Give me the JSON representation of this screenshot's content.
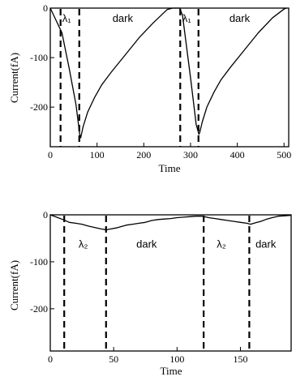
{
  "chart_data": [
    {
      "type": "line",
      "xlabel": "Time",
      "ylabel": "Current(fA)",
      "xlim": [
        0,
        510
      ],
      "ylim": [
        -280,
        0
      ],
      "xticks": [
        0,
        100,
        200,
        300,
        400,
        500
      ],
      "xtick_labels": [
        "0",
        "100",
        "200",
        "300",
        "400",
        "500"
      ],
      "yticks": [
        0,
        -100,
        -200
      ],
      "ytick_labels": [
        "0",
        "-100",
        "-200"
      ],
      "series": [
        {
          "x": [
            0,
            25,
            40,
            55,
            63,
            65,
            70,
            80,
            95,
            110,
            130,
            160,
            190,
            220,
            250,
            262,
            277,
            283,
            300,
            312,
            318,
            320,
            325,
            335,
            350,
            365,
            385,
            415,
            445,
            475,
            500,
            505
          ],
          "y": [
            0,
            -50,
            -120,
            -195,
            -255,
            -262,
            -240,
            -210,
            -180,
            -155,
            -130,
            -95,
            -60,
            -30,
            -3,
            0,
            0,
            -15,
            -140,
            -235,
            -255,
            -250,
            -230,
            -200,
            -170,
            -145,
            -120,
            -85,
            -50,
            -20,
            -2,
            0
          ]
        }
      ],
      "markers_x": [
        22,
        62,
        278,
        317
      ],
      "annotations": [
        {
          "text": "λ₁",
          "x": 35,
          "y": -28
        },
        {
          "text": "dark",
          "x": 155,
          "y": -28
        },
        {
          "text": "λ₁",
          "x": 292,
          "y": -28
        },
        {
          "text": "dark",
          "x": 405,
          "y": -28
        }
      ]
    },
    {
      "type": "line",
      "xlabel": "Time",
      "ylabel": "Current(fA)",
      "xlim": [
        0,
        190
      ],
      "ylim": [
        -290,
        0
      ],
      "xticks": [
        0,
        50,
        100,
        150
      ],
      "xtick_labels": [
        "0",
        "50",
        "100",
        "150"
      ],
      "yticks": [
        0,
        -100,
        -200
      ],
      "ytick_labels": [
        "0",
        "-100",
        "-200"
      ],
      "series": [
        {
          "x": [
            0,
            5,
            10,
            15,
            20,
            25,
            30,
            35,
            40,
            44,
            48,
            52,
            56,
            60,
            65,
            70,
            75,
            80,
            85,
            90,
            95,
            100,
            105,
            110,
            115,
            120,
            125,
            130,
            135,
            140,
            145,
            150,
            155,
            158,
            162,
            166,
            170,
            175,
            180,
            185,
            190
          ],
          "y": [
            0,
            -5,
            -10,
            -16,
            -18,
            -20,
            -24,
            -27,
            -30,
            -32,
            -30,
            -28,
            -25,
            -22,
            -20,
            -18,
            -16,
            -12,
            -10,
            -9,
            -8,
            -6,
            -5,
            -4,
            -3,
            -3,
            -6,
            -8,
            -10,
            -12,
            -14,
            -16,
            -18,
            -20,
            -17,
            -14,
            -10,
            -6,
            -3,
            -2,
            -1
          ]
        }
      ],
      "markers_x": [
        11,
        44,
        121,
        157
      ],
      "annotations": [
        {
          "text": "λ₂",
          "x": 26,
          "y": -70
        },
        {
          "text": "dark",
          "x": 76,
          "y": -70
        },
        {
          "text": "λ₂",
          "x": 135,
          "y": -70
        },
        {
          "text": "dark",
          "x": 170,
          "y": -70
        }
      ]
    }
  ]
}
